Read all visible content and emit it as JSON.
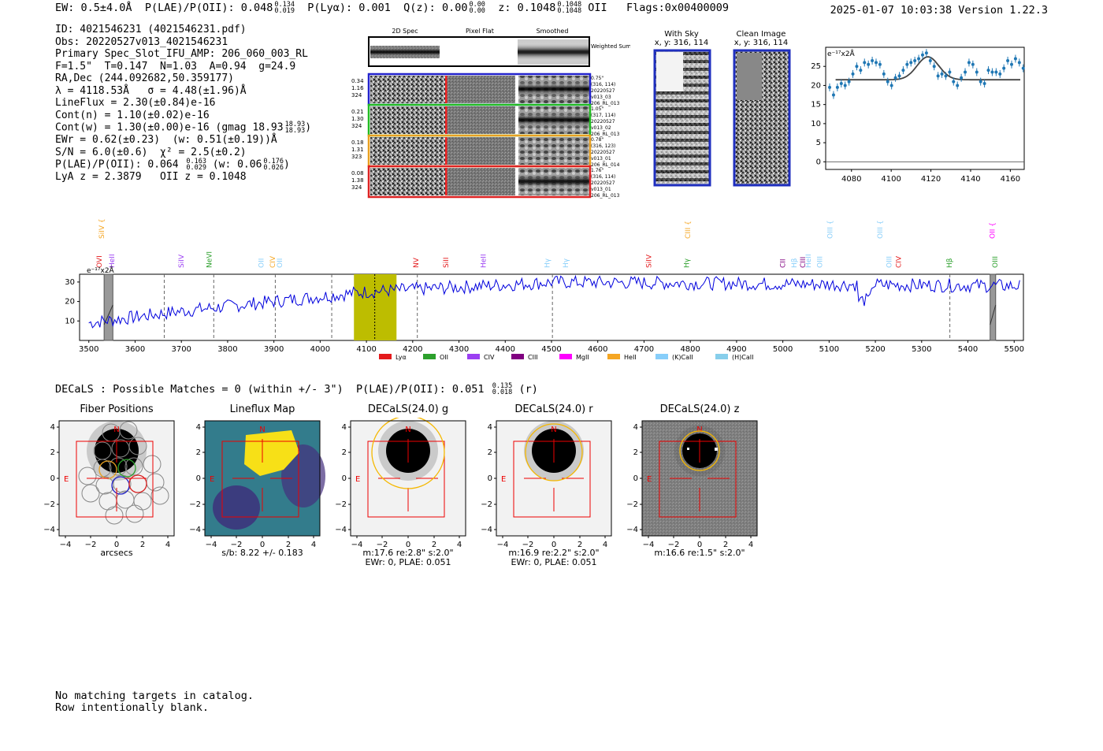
{
  "header": {
    "ew": "EW: 0.5±4.0Å",
    "plae_label": "P(LAE)/P(OII): 0.048",
    "plae_hi": "0.134",
    "plae_lo": "0.019",
    "plya": "P(Lyα): 0.001",
    "qz_label": "Q(z): 0.00",
    "qz_hi": "0.00",
    "qz_lo": "0.00",
    "z_label": "z: 0.1048",
    "z_hi": "0.1048",
    "z_lo": "0.1048",
    "z_line": "OII",
    "flags": "Flags:0x00400009",
    "datetime": "2025-01-07 10:03:38  Version 1.22.3"
  },
  "info": {
    "id": "ID: 4021546231 (4021546231.pdf)",
    "obs": "Obs: 20220527v013_4021546231",
    "primary": "Primary Spec_Slot_IFU_AMP: 206_060_003_RL",
    "f_line": "F=1.5\"  T=0.147  N=1.03  A=0.94  g=24.9",
    "radec": "RA,Dec (244.092682,50.359177)",
    "lambda": "λ = 4118.53Å   σ = 4.48(±1.96)Å",
    "lineflux": "LineFlux = 2.30(±0.84)e-16",
    "contn": "Cont(n) = 1.10(±0.02)e-16",
    "contw": "Cont(w) = 1.30(±0.00)e-16 (gmag 18.93",
    "contw_hi": "18.93",
    "contw_lo": "18.93",
    "ewr": "EWr = 0.62(±0.23)  (w: 0.51(±0.19))Å",
    "sn": "S/N = 6.0(±0.6)  χ² = 2.5(±0.2)",
    "plae": "P(LAE)/P(OII): 0.064",
    "plae_hi": "0.163",
    "plae_lo": "0.029",
    "plae_w": "(w: 0.06",
    "plae_w_hi": "0.176",
    "plae_w_lo": "0.026",
    "lya": "LyA z = 2.3879   OII z = 0.1048"
  },
  "cutouts": {
    "col_labels": [
      "2D Spec",
      "Pixel Flat",
      "Smoothed"
    ],
    "weighted_sum": "Weighted Sum",
    "rows": [
      {
        "left": [
          "0.34",
          "1.16",
          "324"
        ],
        "right": [
          "0.75\"",
          "(316, 114)",
          "20220527",
          "v013_03",
          "206_RL_013"
        ],
        "color": "#2222cc"
      },
      {
        "left": [
          "0.21",
          "1.30",
          "324"
        ],
        "right": [
          "1.05\"",
          "(317, 114)",
          "20220527",
          "v013_02",
          "206_RL_013"
        ],
        "color": "#22bb22"
      },
      {
        "left": [
          "0.18",
          "1.31",
          "323"
        ],
        "right": [
          "0.78\"",
          "(316, 123)",
          "20220527",
          "v013_01",
          "206_RL_014"
        ],
        "color": "#e8a020"
      },
      {
        "left": [
          "0.08",
          "1.38",
          "324"
        ],
        "right": [
          "1.76\"",
          "(316, 114)",
          "20220527",
          "v013_01",
          "206_RL_013"
        ],
        "color": "#dd2222"
      }
    ],
    "with_sky": "With Sky",
    "with_sky_xy": "x, y: 316, 114",
    "clean": "Clean Image",
    "clean_xy": "x, y: 316, 114"
  },
  "zoom_plot": {
    "unit_label": "e⁻¹⁷x2Å",
    "x_ticks": [
      "4080",
      "4100",
      "4120",
      "4140",
      "4160"
    ],
    "y_ticks": [
      "0",
      "5",
      "10",
      "15",
      "20",
      "25"
    ]
  },
  "spectrum": {
    "unit_label": "e⁻¹⁷x2Å",
    "x_ticks": [
      "3500",
      "3600",
      "3700",
      "3800",
      "3900",
      "4000",
      "4100",
      "4200",
      "4300",
      "4400",
      "4500",
      "4600",
      "4700",
      "4800",
      "4900",
      "5000",
      "5100",
      "5200",
      "5300",
      "5400",
      "5500"
    ],
    "y_ticks": [
      "10",
      "20",
      "30"
    ],
    "legend": [
      {
        "label": "Lyα",
        "color": "#e41a1c"
      },
      {
        "label": "OII",
        "color": "#2ca02c"
      },
      {
        "label": "CIV",
        "color": "#9b3ff2"
      },
      {
        "label": "CIII",
        "color": "#800080"
      },
      {
        "label": "MgII",
        "color": "#ff00ff"
      },
      {
        "label": "HeII",
        "color": "#f5a623"
      },
      {
        "label": "(K)CaII",
        "color": "#87cefa"
      },
      {
        "label": "(H)CaII",
        "color": "#87ceeb"
      }
    ],
    "line_labels": [
      {
        "text": "SiIV",
        "color": "#f5a623",
        "row": 0
      },
      {
        "text": "OVI",
        "color": "#e41a1c",
        "row": 1
      },
      {
        "text": "HeII",
        "color": "#9b3ff2",
        "row": 1
      },
      {
        "text": "SiIV",
        "color": "#9b3ff2",
        "row": 1
      },
      {
        "text": "NeVI",
        "color": "#2ca02c",
        "row": 1
      },
      {
        "text": "OII",
        "color": "#87cefa",
        "row": 1
      },
      {
        "text": "CIV",
        "color": "#f5a623",
        "row": 1
      },
      {
        "text": "OII",
        "color": "#87cefa",
        "row": 1
      },
      {
        "text": "NV",
        "color": "#e41a1c",
        "row": 1
      },
      {
        "text": "SiII",
        "color": "#e41a1c",
        "row": 1
      },
      {
        "text": "HeII",
        "color": "#9b3ff2",
        "row": 1
      },
      {
        "text": "Hγ",
        "color": "#87cefa",
        "row": 1
      },
      {
        "text": "Hγ",
        "color": "#87cefa",
        "row": 1
      },
      {
        "text": "SiIV",
        "color": "#e41a1c",
        "row": 1
      },
      {
        "text": "CIII",
        "color": "#f5a623",
        "row": 0
      },
      {
        "text": "Hγ",
        "color": "#2ca02c",
        "row": 1
      },
      {
        "text": "CII",
        "color": "#800080",
        "row": 1
      },
      {
        "text": "Hβ",
        "color": "#87cefa",
        "row": 1
      },
      {
        "text": "CIII",
        "color": "#800080",
        "row": 1
      },
      {
        "text": "HeII",
        "color": "#87cefa",
        "row": 1
      },
      {
        "text": "OIII",
        "color": "#87cefa",
        "row": 1
      },
      {
        "text": "OIII",
        "color": "#87cefa",
        "row": 0
      },
      {
        "text": "OIII",
        "color": "#87cefa",
        "row": 1
      },
      {
        "text": "OIII",
        "color": "#87cefa",
        "row": 0
      },
      {
        "text": "CIV",
        "color": "#e41a1c",
        "row": 1
      },
      {
        "text": "Hβ",
        "color": "#2ca02c",
        "row": 1
      },
      {
        "text": "OII",
        "color": "#ff00ff",
        "row": 0
      },
      {
        "text": "OIII",
        "color": "#2ca02c",
        "row": 1
      }
    ]
  },
  "decals": {
    "header": "DECaLS : Possible Matches = 0 (within +/- 3\")  P(LAE)/P(OII): 0.051",
    "header_hi": "0.135",
    "header_lo": "0.018",
    "header_band": "(r)",
    "axis_ticks": [
      "−4",
      "−2",
      "0",
      "2",
      "4"
    ],
    "y_ticks": [
      "4",
      "2",
      "0",
      "−2",
      "−4"
    ],
    "compass_n": "N",
    "compass_e": "E",
    "panels": [
      {
        "title": "Fiber Positions",
        "caption": [
          "arcsecs"
        ]
      },
      {
        "title": "Lineflux Map",
        "caption": [
          "s/b: 8.22 +/- 0.183"
        ]
      },
      {
        "title": "DECaLS(24.0) g",
        "caption": [
          "m:17.6  re:2.8\"  s:2.0\"",
          "EWr: 0, PLAE: 0.051"
        ]
      },
      {
        "title": "DECaLS(24.0) r",
        "caption": [
          "m:16.9  re:2.2\"  s:2.0\"",
          "EWr: 0, PLAE: 0.051"
        ]
      },
      {
        "title": "DECaLS(24.0) z",
        "caption": [
          "m:16.6  re:1.5\"  s:2.0\""
        ]
      }
    ]
  },
  "footer": {
    "line1": "No matching targets in catalog.",
    "line2": "Row intentionally blank."
  }
}
